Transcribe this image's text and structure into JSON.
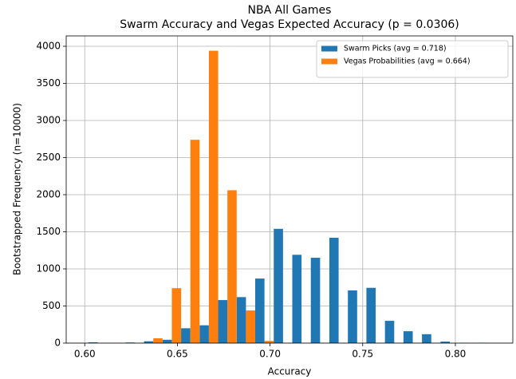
{
  "chart_data": {
    "type": "histogram",
    "title": "NBA All Games",
    "subtitle": "Swarm Accuracy and Vegas Expected Accuracy (p = 0.0306)",
    "x_label": "Accuracy",
    "y_label": "Bootstrapped Frequency (n=10000)",
    "bins": [
      0.602,
      0.612,
      0.622,
      0.632,
      0.642,
      0.652,
      0.662,
      0.672,
      0.682,
      0.692,
      0.702,
      0.712,
      0.722,
      0.732,
      0.742,
      0.752,
      0.762,
      0.772,
      0.782,
      0.792,
      0.802,
      0.812,
      0.822
    ],
    "series": [
      {
        "name": "Swarm Picks (avg = 0.718)",
        "color": "#1f77b4",
        "values": [
          10,
          0,
          8,
          25,
          45,
          200,
          240,
          580,
          620,
          870,
          1540,
          1190,
          1150,
          1420,
          710,
          745,
          300,
          160,
          120,
          20,
          3,
          5
        ]
      },
      {
        "name": "Vegas Probabilities (avg = 0.664)",
        "color": "#ff7f0e",
        "values": [
          0,
          0,
          0,
          65,
          740,
          2740,
          3940,
          2060,
          440,
          30,
          0,
          0,
          0,
          0,
          0,
          0,
          0,
          0,
          0,
          0,
          0,
          0
        ]
      }
    ],
    "xlim": [
      0.59,
      0.831
    ],
    "ylim": [
      0,
      4140
    ],
    "xticks": [
      {
        "value": 0.6,
        "label": "0.60"
      },
      0.65,
      {
        "value": 0.7,
        "label": "0.70"
      },
      0.75,
      {
        "value": 0.8,
        "label": "0.80"
      }
    ],
    "yticks": [
      0,
      500,
      1000,
      1500,
      2000,
      2500,
      3000,
      3500,
      4000
    ],
    "grid": true,
    "legend": "upper right"
  }
}
